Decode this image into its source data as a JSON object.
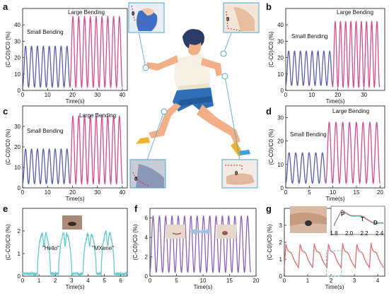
{
  "colors": {
    "small": "#5b5fa8",
    "large": "#d0508f",
    "cyan": "#66c9cf",
    "purple": "#8a63b8",
    "red": "#dd6f6a",
    "inset_frame": "#5bbbd0"
  },
  "chart_data": [
    {
      "id": "a",
      "panel_label": "a",
      "type": "line",
      "xlabel": "Time(s)",
      "ylabel": "(C-C0)/C0 (%)",
      "xlim": [
        0,
        42
      ],
      "ylim": [
        0,
        50
      ],
      "xticks": [
        0,
        10,
        20,
        30,
        40
      ],
      "yticks": [
        0,
        10,
        20,
        30,
        40
      ],
      "annotations": [
        "Small Bending",
        "Large Bending"
      ],
      "inset": "θ-wrist-photo",
      "series": [
        {
          "name": "Small Bending",
          "color": "#5b5fa8",
          "start": 0,
          "end": 19,
          "n_peaks": 8,
          "base": 2,
          "peak": 27
        },
        {
          "name": "Large Bending",
          "color": "#d0508f",
          "start": 19,
          "end": 40,
          "n_peaks": 9,
          "base": 2,
          "peak": 45
        }
      ]
    },
    {
      "id": "b",
      "panel_label": "b",
      "type": "line",
      "xlabel": "Time(s)",
      "ylabel": "(C-C0)/C0 (%)",
      "xlim": [
        0,
        38
      ],
      "ylim": [
        0,
        50
      ],
      "xticks": [
        0,
        10,
        20,
        30
      ],
      "yticks": [
        0,
        10,
        20,
        30,
        40
      ],
      "annotations": [
        "Small Bending",
        "Large Bending"
      ],
      "inset": "θ-elbow-photo",
      "series": [
        {
          "name": "Small Bending",
          "color": "#5b5fa8",
          "start": 0,
          "end": 18,
          "n_peaks": 8,
          "base": 3,
          "peak": 24
        },
        {
          "name": "Large Bending",
          "color": "#d0508f",
          "start": 18,
          "end": 36,
          "n_peaks": 9,
          "base": 2,
          "peak": 42
        }
      ]
    },
    {
      "id": "c",
      "panel_label": "c",
      "type": "line",
      "xlabel": "Time(s)",
      "ylabel": "(C-C0)/C0 (%)",
      "xlim": [
        0,
        42
      ],
      "ylim": [
        0,
        40
      ],
      "xticks": [
        0,
        10,
        20,
        30,
        40
      ],
      "yticks": [
        0,
        10,
        20,
        30
      ],
      "annotations": [
        "Small Bending",
        "Large Bending"
      ],
      "inset": "θ-knee-photo",
      "series": [
        {
          "name": "Small Bending",
          "color": "#5b5fa8",
          "start": 0,
          "end": 19,
          "n_peaks": 8,
          "base": 2,
          "peak": 19
        },
        {
          "name": "Large Bending",
          "color": "#d0508f",
          "start": 19,
          "end": 40,
          "n_peaks": 9,
          "base": 2,
          "peak": 35
        }
      ]
    },
    {
      "id": "d",
      "panel_label": "d",
      "type": "line",
      "xlabel": "Time(s)",
      "ylabel": "(C-C0)/C0 (%)",
      "xlim": [
        0,
        21
      ],
      "ylim": [
        0,
        35
      ],
      "xticks": [
        0,
        5,
        10,
        15,
        20
      ],
      "yticks": [
        0,
        10,
        20,
        30
      ],
      "annotations": [
        "Small Bending",
        "Large Bending"
      ],
      "inset": "θ-ankle-photo",
      "series": [
        {
          "name": "Small Bending",
          "color": "#5b5fa8",
          "start": 0,
          "end": 8.5,
          "n_peaks": 6,
          "base": 2,
          "peak": 15
        },
        {
          "name": "Large Bending",
          "color": "#d0508f",
          "start": 8.5,
          "end": 20,
          "n_peaks": 8,
          "base": 2,
          "peak": 28
        }
      ]
    },
    {
      "id": "e",
      "panel_label": "e",
      "type": "line",
      "xlabel": "Time(s)",
      "ylabel": "(C-C0)/C0 (%)",
      "xlim": [
        0,
        6.4
      ],
      "ylim": [
        0,
        3
      ],
      "xticks": [
        0,
        1,
        2,
        3,
        4,
        5,
        6
      ],
      "yticks": [
        0,
        1,
        2
      ],
      "annotations": [
        "\"Hello\"",
        "\"MXene\""
      ],
      "inset": "throat-photo",
      "series": [
        {
          "name": "",
          "color": "#66c9cf",
          "segments": [
            [
              0.9,
              1.7,
              1.9
            ],
            [
              2.2,
              3.0,
              1.9
            ],
            [
              3.7,
              4.5,
              1.9
            ],
            [
              4.8,
              5.6,
              1.95
            ]
          ],
          "base": 0.1
        }
      ]
    },
    {
      "id": "f",
      "panel_label": "f",
      "type": "line",
      "xlabel": "Time(s)",
      "ylabel": "(C-C0)/C0 (%)",
      "xlim": [
        0,
        20
      ],
      "ylim": [
        0,
        7
      ],
      "xticks": [
        0,
        5,
        10,
        15,
        20
      ],
      "yticks": [
        0,
        2,
        4,
        6
      ],
      "annotations": [],
      "inset": "mouth-photos",
      "series": [
        {
          "name": "",
          "color": "#8a63b8",
          "start": 0,
          "end": 19,
          "n_peaks": 16,
          "base": 0.4,
          "peak": 6.2
        }
      ]
    },
    {
      "id": "g",
      "panel_label": "g",
      "type": "line",
      "xlabel": "Time(s)",
      "ylabel": "(C-C0)/C0 (%)",
      "xlim": [
        0,
        4.3
      ],
      "ylim": [
        0,
        4
      ],
      "xticks": [
        0,
        1,
        2,
        3,
        4
      ],
      "yticks": [
        0,
        1,
        2,
        3
      ],
      "annotations": [
        "P",
        "T",
        "D"
      ],
      "inset_xticks": [
        1.8,
        2.0,
        2.2,
        2.4
      ],
      "inset": "wrist-pulse-photo",
      "series": [
        {
          "name": "",
          "color": "#dd6f6a",
          "start": 0,
          "end": 4.25,
          "n_peaks": 7,
          "base": 0.5,
          "peak": 2.0
        }
      ]
    }
  ]
}
